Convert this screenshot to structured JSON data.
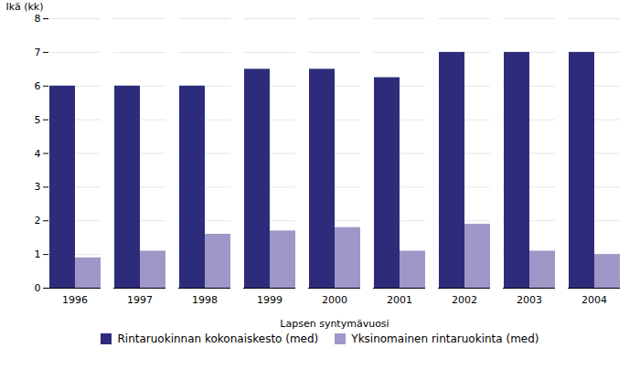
{
  "chart_data": {
    "type": "bar",
    "categories": [
      "1996",
      "1997",
      "1998",
      "1999",
      "2000",
      "2001",
      "2002",
      "2003",
      "2004"
    ],
    "series": [
      {
        "name": "Rintaruokinnan kokonaiskesto (med)",
        "color": "#2E2C7A",
        "values": [
          6.0,
          6.0,
          6.0,
          6.5,
          6.5,
          6.25,
          7.0,
          7.0,
          7.0
        ]
      },
      {
        "name": "Yksinomainen rintaruokinta (med)",
        "color": "#9E97C8",
        "values": [
          0.9,
          1.1,
          1.6,
          1.7,
          1.8,
          1.1,
          1.9,
          1.1,
          1.0
        ]
      }
    ],
    "xlabel": "Lapsen syntymävuosi",
    "ylabel": "Ikä (kk)",
    "ylim": [
      0,
      8
    ],
    "yticks": [
      0,
      1,
      2,
      3,
      4,
      5,
      6,
      7,
      8
    ],
    "grid": true,
    "legend": "bottom"
  }
}
